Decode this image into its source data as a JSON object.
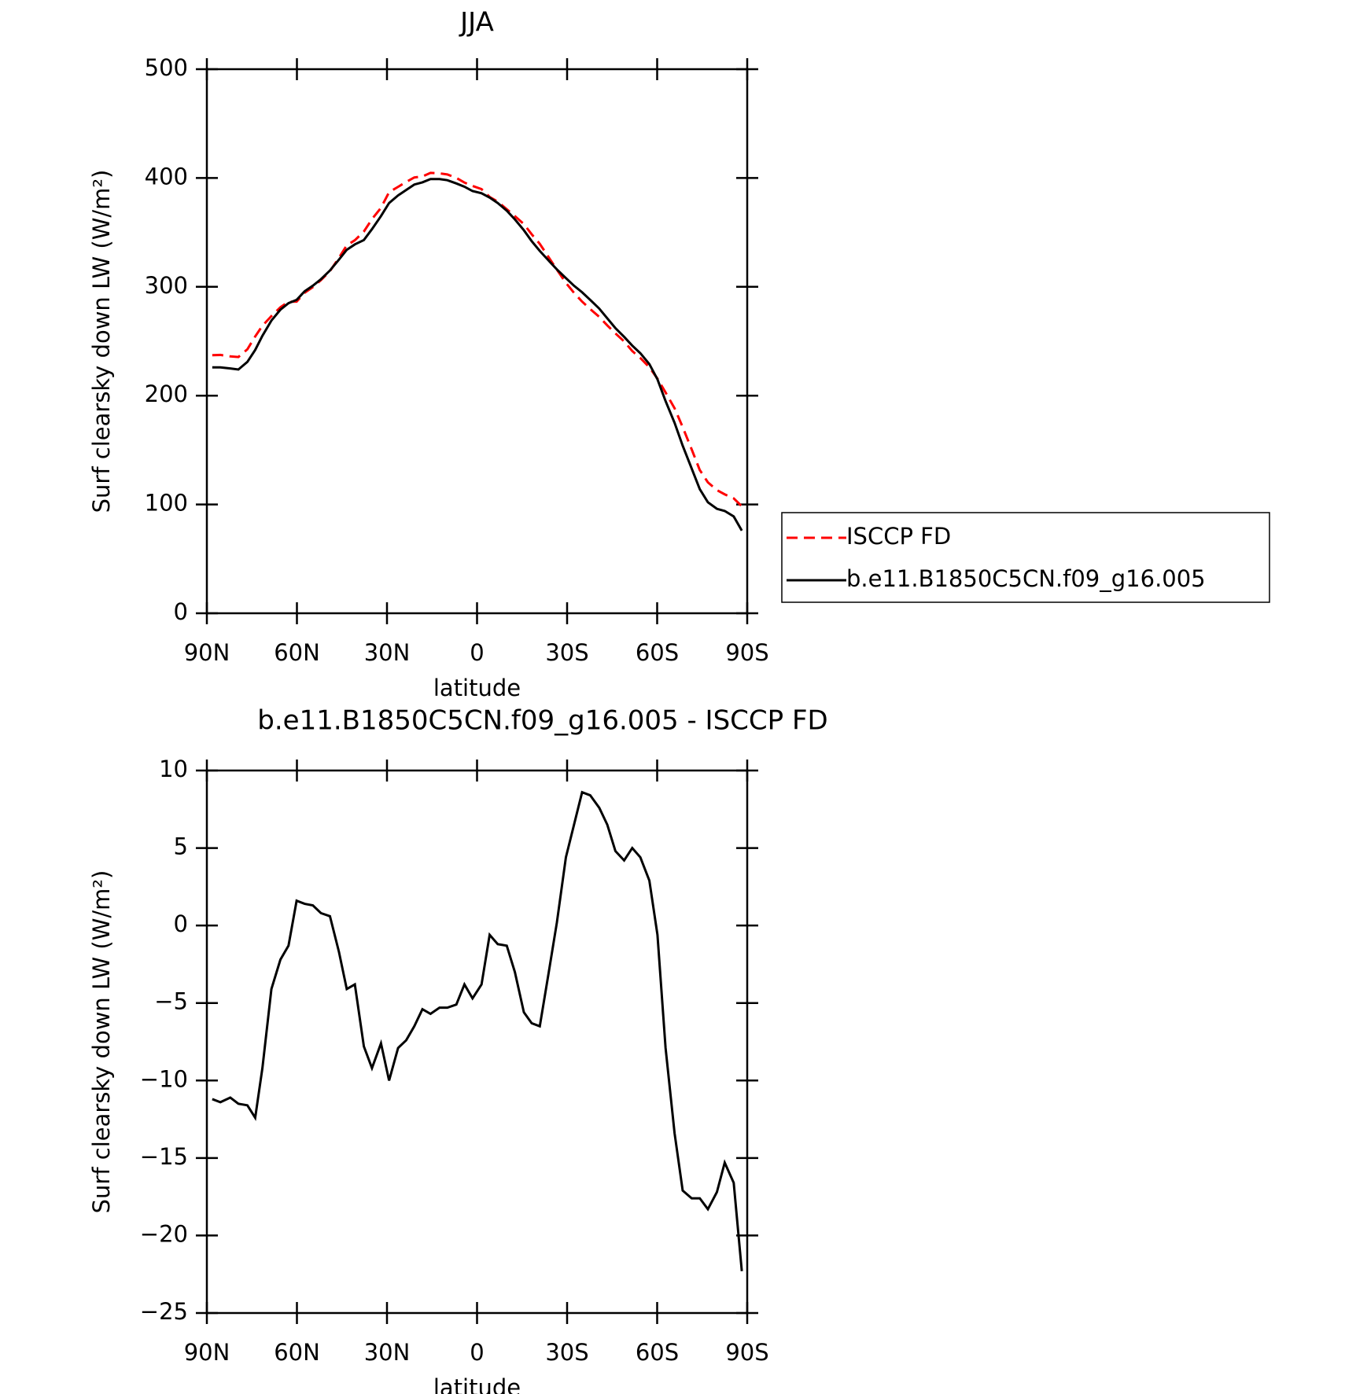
{
  "chart_data": [
    {
      "type": "line",
      "title": "JJA",
      "xlabel": "latitude",
      "ylabel": "Surf clearsky down LW (W/m²)",
      "x": [
        88.2,
        85.5,
        82.2,
        79.5,
        76.5,
        73.9,
        71.5,
        68.5,
        65.5,
        62.8,
        60.1,
        57.4,
        54.7,
        52.0,
        49.0,
        46.0,
        43.4,
        40.7,
        37.7,
        35.0,
        32.0,
        29.3,
        26.3,
        23.6,
        20.9,
        18.2,
        15.5,
        12.5,
        9.9,
        6.9,
        4.2,
        1.5,
        -1.5,
        -4.2,
        -6.9,
        -9.9,
        -12.6,
        -15.6,
        -18.2,
        -20.9,
        -23.9,
        -26.6,
        -29.6,
        -32.3,
        -35.0,
        -37.7,
        -40.7,
        -43.4,
        -46.1,
        -49.0,
        -51.7,
        -54.4,
        -57.4,
        -60.1,
        -62.8,
        -65.8,
        -68.5,
        -71.5,
        -74.2,
        -76.9,
        -79.9,
        -82.5,
        -85.5,
        -88.2
      ],
      "series": [
        {
          "name": "ISCCP FD",
          "color": "#ff0000",
          "line_style": "dashed",
          "values": [
            237.2,
            237.4,
            236.1,
            235.5,
            242.6,
            254.4,
            264.2,
            273.1,
            281.2,
            286.3,
            286.4,
            294.6,
            299.7,
            306.2,
            314.4,
            326.7,
            338.1,
            342.8,
            350.8,
            362.2,
            372.6,
            387,
            391.9,
            396.4,
            400.5,
            401.4,
            404.7,
            404.3,
            403.3,
            400.1,
            395.8,
            392.7,
            389.8,
            382.6,
            378.2,
            371.3,
            365,
            357.6,
            348.3,
            339.5,
            327,
            315.8,
            303.6,
            294.5,
            286.4,
            279.6,
            272.4,
            264.5,
            257.2,
            249.8,
            241,
            234.6,
            226.1,
            215.6,
            202.9,
            188.4,
            171.1,
            150.6,
            131.6,
            120.3,
            113.2,
            109.3,
            105.6,
            98.3
          ]
        },
        {
          "name": "b.e11.B1850C5CN.f09_g16.005",
          "color": "#000000",
          "line_style": "solid",
          "values": [
            226,
            226,
            225,
            224,
            231,
            242,
            255,
            269,
            279,
            285,
            288,
            296,
            301,
            307,
            315,
            325,
            334,
            339,
            343,
            353,
            365,
            377,
            384,
            389,
            394,
            396,
            399,
            399,
            398,
            395,
            392,
            388,
            386,
            382,
            377,
            370,
            362,
            352,
            342,
            333,
            324,
            316,
            308,
            301,
            295,
            288,
            280,
            271,
            262,
            254,
            246,
            239,
            229,
            215,
            195,
            175,
            154,
            133,
            114,
            102,
            96,
            94,
            89,
            76
          ]
        }
      ],
      "xlim": [
        90,
        -90
      ],
      "xticks": [
        {
          "value": 90,
          "label": "90N"
        },
        {
          "value": 60,
          "label": "60N"
        },
        {
          "value": 30,
          "label": "30N"
        },
        0,
        {
          "value": -30,
          "label": "30S"
        },
        {
          "value": -60,
          "label": "60S"
        },
        {
          "value": -90,
          "label": "90S"
        }
      ],
      "ylim": [
        0,
        500
      ],
      "yticks": [
        0,
        100,
        200,
        300,
        400,
        500
      ],
      "legend": "right"
    },
    {
      "type": "line",
      "title": "b.e11.B1850C5CN.f09_g16.005 - ISCCP FD",
      "xlabel": "latitude",
      "ylabel": "Surf clearsky down LW (W/m²)",
      "x": [
        88.2,
        85.5,
        82.2,
        79.5,
        76.5,
        73.9,
        71.5,
        68.5,
        65.5,
        62.8,
        60.1,
        57.4,
        54.7,
        52.0,
        49.0,
        46.0,
        43.4,
        40.7,
        37.7,
        35.0,
        32.0,
        29.3,
        26.3,
        23.6,
        20.9,
        18.2,
        15.5,
        12.5,
        9.9,
        6.9,
        4.2,
        1.5,
        -1.5,
        -4.2,
        -6.9,
        -9.9,
        -12.6,
        -15.6,
        -18.2,
        -20.9,
        -23.9,
        -26.6,
        -29.6,
        -32.3,
        -35.0,
        -37.7,
        -40.7,
        -43.4,
        -46.1,
        -49.0,
        -51.7,
        -54.4,
        -57.4,
        -60.1,
        -62.8,
        -65.8,
        -68.5,
        -71.5,
        -74.2,
        -76.9,
        -79.9,
        -82.5,
        -85.5,
        -88.2
      ],
      "values": [
        -11.2,
        -11.4,
        -11.1,
        -11.5,
        -11.6,
        -12.4,
        -9.2,
        -4.1,
        -2.2,
        -1.3,
        1.6,
        1.4,
        1.3,
        0.8,
        0.6,
        -1.7,
        -4.1,
        -3.8,
        -7.8,
        -9.2,
        -7.6,
        -10.0,
        -7.9,
        -7.4,
        -6.5,
        -5.4,
        -5.7,
        -5.3,
        -5.3,
        -5.1,
        -3.8,
        -4.7,
        -3.8,
        -0.6,
        -1.2,
        -1.3,
        -3.0,
        -5.6,
        -6.3,
        -6.5,
        -3.0,
        0.2,
        4.4,
        6.5,
        8.6,
        8.4,
        7.6,
        6.5,
        4.8,
        4.2,
        5.0,
        4.4,
        2.9,
        -0.6,
        -7.9,
        -13.4,
        -17.1,
        -17.6,
        -17.6,
        -18.3,
        -17.2,
        -15.3,
        -16.6,
        -22.3
      ],
      "color": "#000000",
      "line_style": "solid",
      "xlim": [
        90,
        -90
      ],
      "xticks": [
        {
          "value": 90,
          "label": "90N"
        },
        {
          "value": 60,
          "label": "60N"
        },
        {
          "value": 30,
          "label": "30N"
        },
        0,
        {
          "value": -30,
          "label": "30S"
        },
        {
          "value": -60,
          "label": "60S"
        },
        {
          "value": -90,
          "label": "90S"
        }
      ],
      "ylim": [
        -25,
        10
      ],
      "yticks": [
        {
          "value": -25,
          "label": "−25"
        },
        {
          "value": -20,
          "label": "−20"
        },
        {
          "value": -15,
          "label": "−15"
        },
        {
          "value": -10,
          "label": "−10"
        },
        {
          "value": -5,
          "label": "−5"
        },
        0,
        5,
        10
      ]
    }
  ]
}
